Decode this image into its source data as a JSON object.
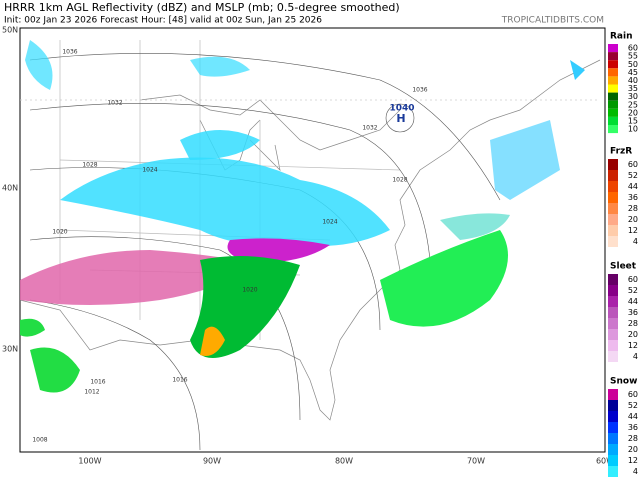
{
  "header": {
    "title": "HRRR 1km AGL Reflectivity (dBZ) and MSLP (mb; 0.5-degree smoothed)",
    "subtitle": "Init: 00z Jan 23 2026   Forecast Hour: [48]   valid at 00z Sun, Jan 25 2026",
    "brand": "TROPICALTIDBITS.COM"
  },
  "map": {
    "lat_labels": [
      "50N",
      "40N",
      "30N"
    ],
    "lon_labels": [
      "100W",
      "90W",
      "80W",
      "70W",
      "60W"
    ],
    "high_pressure": "1040",
    "high_label": "H",
    "isobar_labels": [
      "1036",
      "1032",
      "1028",
      "1024",
      "1020",
      "1016",
      "1012",
      "1008",
      "1036",
      "1032",
      "1028",
      "1024",
      "1020",
      "1016"
    ]
  },
  "legend": [
    {
      "title": "Rain",
      "levels": [
        {
          "value": 60,
          "color": "#cc00cc"
        },
        {
          "value": 55,
          "color": "#990033"
        },
        {
          "value": 50,
          "color": "#cc0000"
        },
        {
          "value": 45,
          "color": "#ff6600"
        },
        {
          "value": 40,
          "color": "#ffaa00"
        },
        {
          "value": 35,
          "color": "#ffff00"
        },
        {
          "value": 30,
          "color": "#006600"
        },
        {
          "value": 25,
          "color": "#009900"
        },
        {
          "value": 20,
          "color": "#00bb00"
        },
        {
          "value": 15,
          "color": "#00dd33"
        },
        {
          "value": 10,
          "color": "#33ff66"
        }
      ]
    },
    {
      "title": "FrzR",
      "levels": [
        {
          "value": 60,
          "color": "#990000"
        },
        {
          "value": 52,
          "color": "#cc2200"
        },
        {
          "value": 44,
          "color": "#ee4400"
        },
        {
          "value": 36,
          "color": "#ff6600"
        },
        {
          "value": 28,
          "color": "#ff8844"
        },
        {
          "value": 20,
          "color": "#ffaa88"
        },
        {
          "value": 12,
          "color": "#ffccaa"
        },
        {
          "value": 4,
          "color": "#ffe0cc"
        }
      ]
    },
    {
      "title": "Sleet",
      "levels": [
        {
          "value": 60,
          "color": "#660066"
        },
        {
          "value": 52,
          "color": "#880088"
        },
        {
          "value": 44,
          "color": "#aa22aa"
        },
        {
          "value": 36,
          "color": "#bb55bb"
        },
        {
          "value": 28,
          "color": "#cc77cc"
        },
        {
          "value": 20,
          "color": "#dd99dd"
        },
        {
          "value": 12,
          "color": "#eebbee"
        },
        {
          "value": 4,
          "color": "#f4d8f4"
        }
      ]
    },
    {
      "title": "Snow",
      "levels": [
        {
          "value": 60,
          "color": "#cc0099"
        },
        {
          "value": 52,
          "color": "#000099"
        },
        {
          "value": 44,
          "color": "#0000cc"
        },
        {
          "value": 36,
          "color": "#0033ff"
        },
        {
          "value": 28,
          "color": "#0077ff"
        },
        {
          "value": 20,
          "color": "#00aaff"
        },
        {
          "value": 12,
          "color": "#00ccff"
        },
        {
          "value": 4,
          "color": "#33eeff"
        }
      ]
    }
  ]
}
